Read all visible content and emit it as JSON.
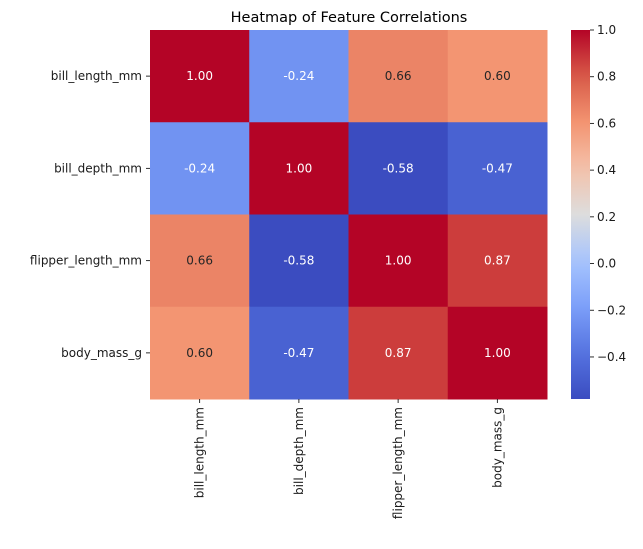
{
  "chart_data": {
    "type": "heatmap",
    "title": "Heatmap of Feature Correlations",
    "xlabel": "",
    "ylabel": "",
    "row_labels": [
      "bill_length_mm",
      "bill_depth_mm",
      "flipper_length_mm",
      "body_mass_g"
    ],
    "col_labels": [
      "bill_length_mm",
      "bill_depth_mm",
      "flipper_length_mm",
      "body_mass_g"
    ],
    "values": [
      [
        1.0,
        -0.24,
        0.66,
        0.6
      ],
      [
        -0.24,
        1.0,
        -0.58,
        -0.47
      ],
      [
        0.66,
        -0.58,
        1.0,
        0.87
      ],
      [
        0.6,
        -0.47,
        0.87,
        1.0
      ]
    ],
    "annotation_format": "0.00",
    "colormap": "coolwarm",
    "colorbar": {
      "range": [
        -0.58,
        1.0
      ],
      "ticks": [
        1.0,
        0.8,
        0.6,
        0.4,
        0.2,
        0.0,
        -0.2,
        -0.4
      ],
      "tick_labels": [
        "1.0",
        "0.8",
        "0.6",
        "0.4",
        "0.2",
        "0.0",
        "−0.2",
        "−0.4"
      ],
      "placement": "right"
    }
  }
}
